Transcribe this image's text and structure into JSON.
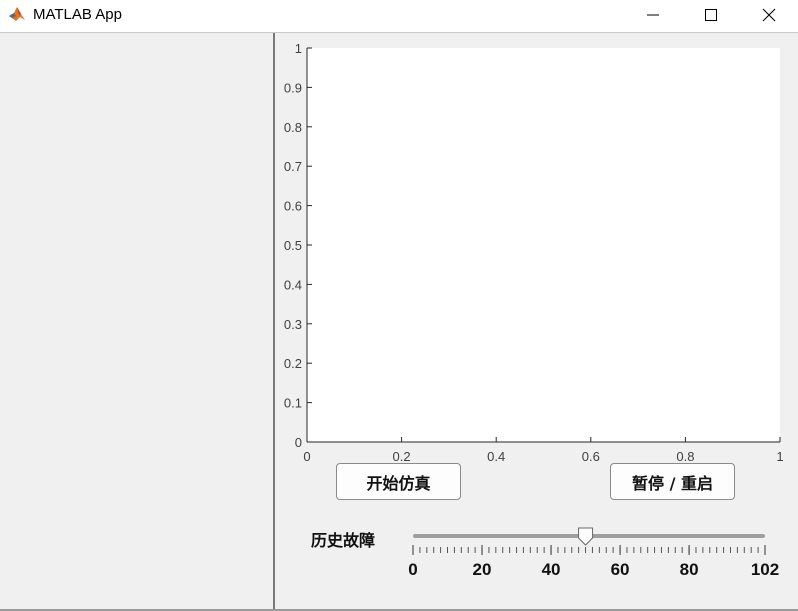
{
  "window": {
    "title": "MATLAB App",
    "icon": "matlab-logo-icon",
    "controls": [
      "minimize-icon",
      "maximize-icon",
      "close-icon"
    ]
  },
  "chart_data": {
    "type": "line",
    "title": "",
    "xlabel": "",
    "ylabel": "",
    "xlim": [
      0,
      1
    ],
    "ylim": [
      0,
      1
    ],
    "xticks": [
      "0",
      "0.2",
      "0.4",
      "0.6",
      "0.8",
      "1"
    ],
    "yticks": [
      "0",
      "0.1",
      "0.2",
      "0.3",
      "0.4",
      "0.5",
      "0.6",
      "0.7",
      "0.8",
      "0.9",
      "1"
    ],
    "series": [],
    "grid": false
  },
  "buttons": {
    "start_label": "开始仿真",
    "pause_label": "暂停 / 重启"
  },
  "slider": {
    "label": "历史故障",
    "min": 0,
    "max": 102,
    "value": 50,
    "major_ticks": [
      "0",
      "20",
      "40",
      "60",
      "80",
      "102"
    ]
  },
  "colors": {
    "axes_background": "#ffffff",
    "panel_background": "#f0f0f0",
    "axis_color": "#262626"
  }
}
